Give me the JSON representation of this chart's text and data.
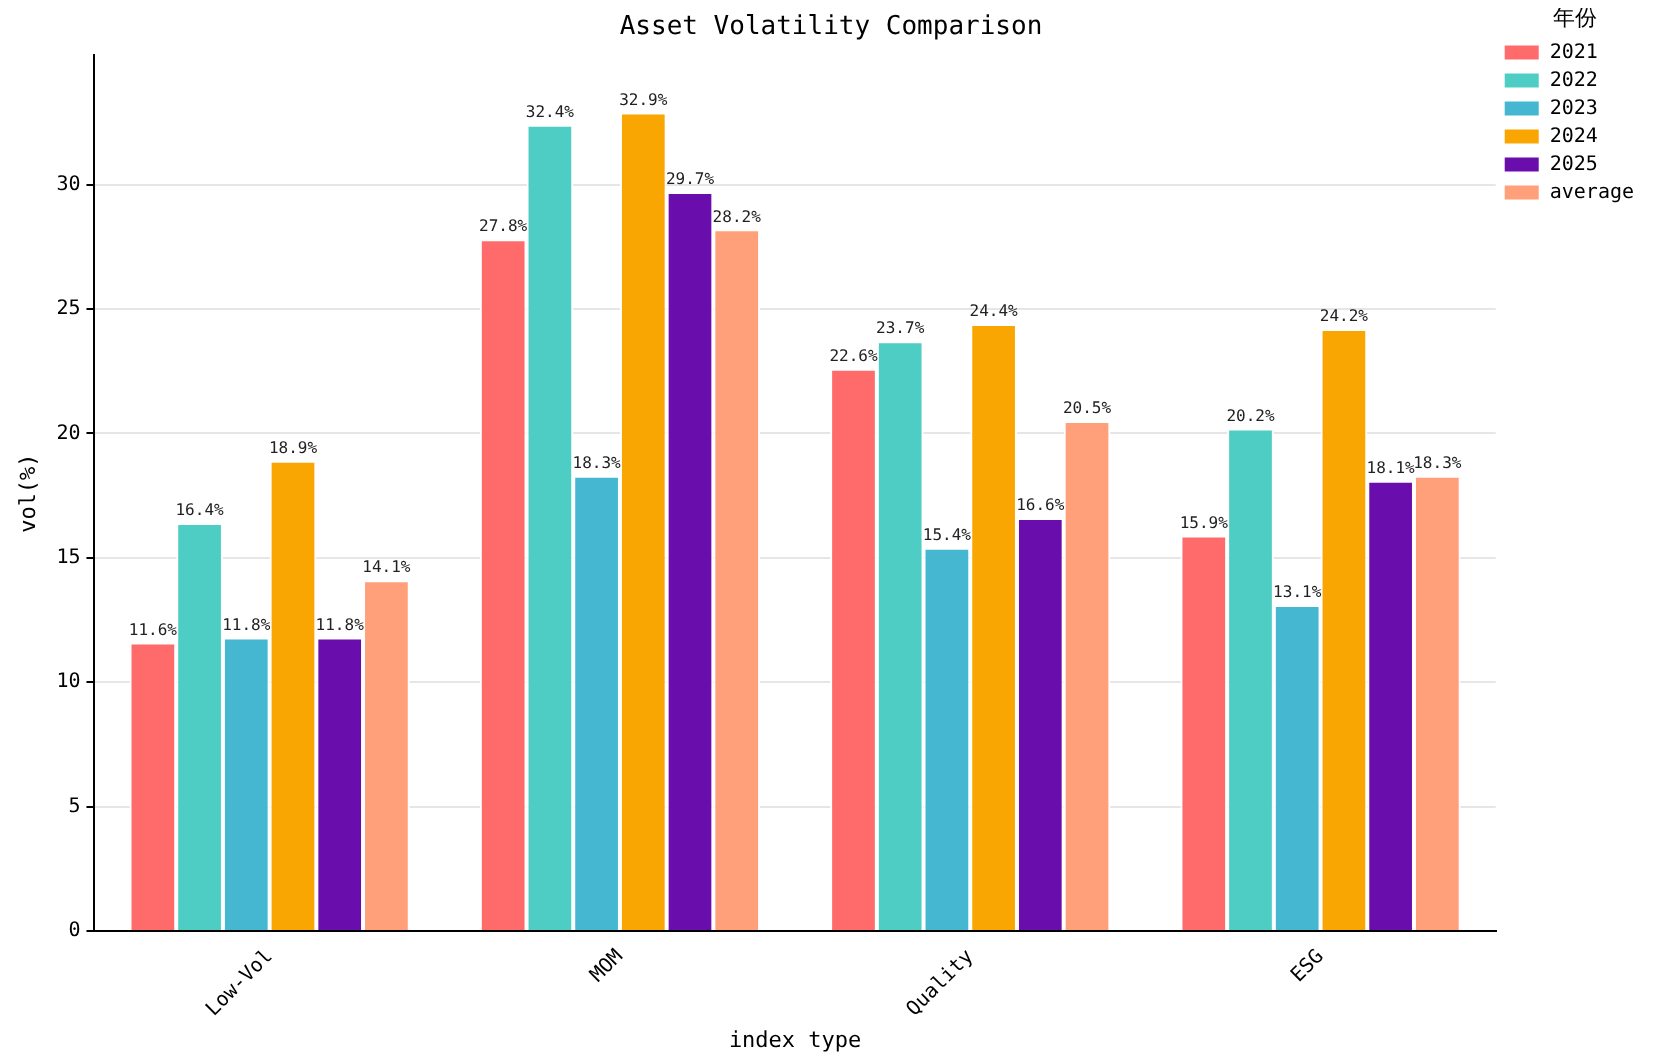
{
  "chart_data": {
    "type": "bar",
    "title": "Asset Volatility Comparison",
    "xlabel": "index type",
    "ylabel": "vol(%)",
    "legend_title": "年份",
    "categories": [
      "Low-Vol",
      "MOM",
      "Quality",
      "ESG"
    ],
    "series": [
      {
        "name": "2021",
        "color": "#ff6b6b",
        "values": [
          11.6,
          27.8,
          22.6,
          15.9
        ],
        "value_labels": [
          "11.6%",
          "27.8%",
          "22.6%",
          "15.9%"
        ]
      },
      {
        "name": "2022",
        "color": "#4ecdc4",
        "values": [
          16.4,
          32.4,
          23.7,
          20.2
        ],
        "value_labels": [
          "16.4%",
          "32.4%",
          "23.7%",
          "20.2%"
        ]
      },
      {
        "name": "2023",
        "color": "#45b7d1",
        "values": [
          11.8,
          18.3,
          15.4,
          13.1
        ],
        "value_labels": [
          "11.8%",
          "18.3%",
          "15.4%",
          "13.1%"
        ]
      },
      {
        "name": "2024",
        "color": "#f9a602",
        "values": [
          18.9,
          32.9,
          24.4,
          24.2
        ],
        "value_labels": [
          "18.9%",
          "32.9%",
          "24.4%",
          "24.2%"
        ]
      },
      {
        "name": "2025",
        "color": "#6a0dad",
        "values": [
          11.8,
          29.7,
          16.6,
          18.1
        ],
        "value_labels": [
          "11.8%",
          "29.7%",
          "16.6%",
          "18.1%"
        ]
      },
      {
        "name": "average",
        "color": "#ffa07a",
        "values": [
          14.1,
          28.2,
          20.5,
          18.3
        ],
        "value_labels": [
          "14.1%",
          "28.2%",
          "20.5%",
          "18.3%"
        ]
      }
    ],
    "ylim": [
      0,
      35.2
    ],
    "yticks": [
      0,
      5,
      10,
      15,
      20,
      25,
      30
    ],
    "grid": "y",
    "legend": "top right"
  }
}
